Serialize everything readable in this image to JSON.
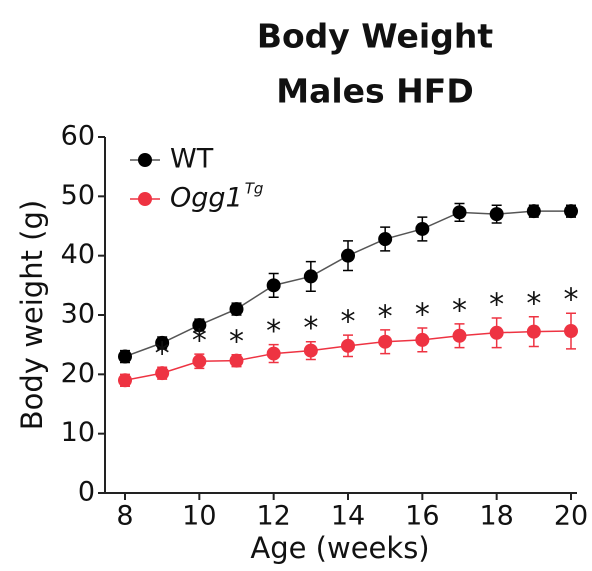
{
  "chart_data": {
    "type": "line",
    "title": [
      "Body Weight",
      "Males HFD"
    ],
    "x_label": "Age (weeks)",
    "y_label": "Body weight (g)",
    "x": [
      8,
      9,
      10,
      11,
      12,
      13,
      14,
      15,
      16,
      17,
      18,
      19,
      20
    ],
    "series": [
      {
        "name": "WT",
        "color": "#000000",
        "line_color": "#555555",
        "values": [
          23,
          25.3,
          28.3,
          31,
          35,
          36.5,
          40,
          42.8,
          44.5,
          47.3,
          47,
          47.5,
          47.5
        ],
        "errors": [
          1,
          1,
          1,
          1,
          2,
          2.5,
          2.5,
          2,
          2,
          1.5,
          1.5,
          1,
          1
        ]
      },
      {
        "name": "Ogg1",
        "name_superscript": "Tg",
        "color": "#ee3342",
        "line_color": "#ee3342",
        "values": [
          19,
          20.2,
          22.2,
          22.3,
          23.5,
          24,
          24.8,
          25.5,
          25.8,
          26.5,
          27,
          27.2,
          27.3
        ],
        "errors": [
          1,
          1,
          1.2,
          1,
          1.5,
          1.5,
          1.8,
          2,
          2,
          2,
          2.5,
          2.5,
          3
        ]
      }
    ],
    "significance": {
      "label": "*",
      "x": [
        9,
        10,
        11,
        12,
        13,
        14,
        15,
        16,
        17,
        18,
        19,
        20
      ]
    },
    "xlim": [
      8,
      20
    ],
    "xticks": [
      8,
      10,
      12,
      14,
      16,
      18,
      20
    ],
    "ylim": [
      0,
      60
    ],
    "yticks": [
      0,
      10,
      20,
      30,
      40,
      50,
      60
    ],
    "legend": "upper left",
    "grid": false
  }
}
